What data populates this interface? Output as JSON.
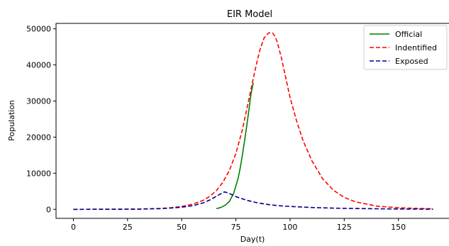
{
  "chart_data": {
    "type": "line",
    "title": "EIR Model",
    "xlabel": "Day(t)",
    "ylabel": "Population",
    "xlim": [
      -8,
      174
    ],
    "ylim": [
      -2500,
      51500
    ],
    "xticks": [
      0,
      25,
      50,
      75,
      100,
      125,
      150
    ],
    "yticks": [
      0,
      10000,
      20000,
      30000,
      40000,
      50000
    ],
    "grid": false,
    "legend_position": "top-right",
    "series": [
      {
        "name": "Official",
        "color": "#008000",
        "dash": "solid",
        "x": [
          66,
          68,
          70,
          72,
          74,
          76,
          77,
          78,
          79,
          80,
          81,
          82,
          83
        ],
        "y": [
          200,
          500,
          1100,
          2200,
          4500,
          8500,
          11500,
          15000,
          19000,
          23000,
          27500,
          32000,
          35000
        ]
      },
      {
        "name": "Indentified",
        "color": "#ff0000",
        "dash": "dashed",
        "x": [
          0,
          10,
          20,
          30,
          40,
          45,
          50,
          55,
          60,
          63,
          66,
          69,
          72,
          75,
          78,
          81,
          84,
          86,
          88,
          90,
          91,
          92,
          93,
          94,
          96,
          98,
          100,
          103,
          106,
          110,
          115,
          120,
          125,
          130,
          140,
          150,
          160,
          166
        ],
        "y": [
          0,
          10,
          30,
          80,
          250,
          450,
          800,
          1400,
          2500,
          3600,
          5200,
          7500,
          10800,
          15500,
          22000,
          30500,
          39000,
          44000,
          47500,
          48800,
          49000,
          48800,
          48000,
          46500,
          42000,
          36500,
          31000,
          24500,
          19000,
          13500,
          8500,
          5300,
          3300,
          2100,
          900,
          420,
          220,
          150
        ]
      },
      {
        "name": "Exposed",
        "color": "#00008b",
        "dash": "dashed",
        "x": [
          0,
          10,
          20,
          30,
          40,
          45,
          50,
          55,
          60,
          63,
          66,
          68,
          69,
          70,
          72,
          75,
          80,
          85,
          90,
          95,
          100,
          110,
          120,
          130,
          140,
          150,
          160,
          166
        ],
        "y": [
          0,
          5,
          20,
          60,
          200,
          350,
          600,
          1000,
          1800,
          2600,
          3600,
          4300,
          4700,
          4800,
          4400,
          3500,
          2500,
          1800,
          1300,
          1000,
          800,
          500,
          330,
          220,
          150,
          100,
          60,
          40
        ]
      }
    ]
  }
}
